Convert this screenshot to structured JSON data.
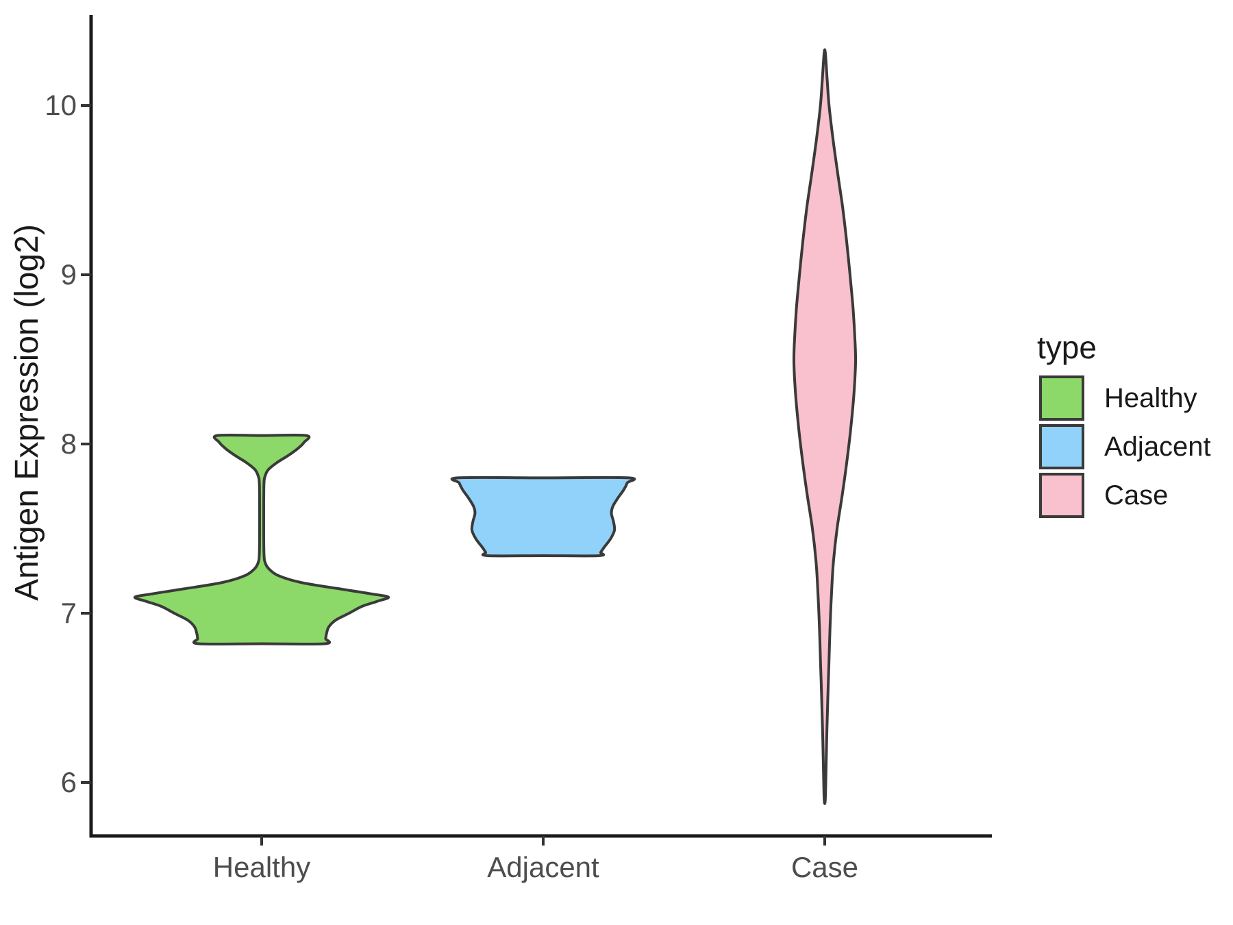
{
  "figure": {
    "background": "#FFFFFF"
  },
  "chart_data": {
    "type": "violin",
    "title": "",
    "xlabel": "",
    "ylabel": "Antigen Expression (log2)",
    "categories": [
      "Healthy",
      "Adjacent",
      "Case"
    ],
    "y_ticks": [
      "6",
      "7",
      "8",
      "9",
      "10"
    ],
    "y_tick_values": [
      6,
      7,
      8,
      9,
      10
    ],
    "ylim": [
      5.68,
      10.54
    ],
    "grid": false,
    "theme": "classic (left and bottom axis lines only)",
    "outline_color": "#3A3A3A",
    "axis_line_color": "#1A1A1A",
    "tick_mark_color": "#333333",
    "tick_text_color": "#4D4D4D",
    "legend": {
      "title": "type",
      "position": "right",
      "entries": [
        "Healthy",
        "Adjacent",
        "Case"
      ]
    },
    "series": [
      {
        "name": "Healthy",
        "fill": "#8CD868",
        "min": 6.82,
        "max": 8.05,
        "peak_density_at": 7.1,
        "shape_note": "bimodal: wide mass 6.8-7.3 with flat bottom, thin stem up to flared flat top at 8.05",
        "flat_top": true,
        "flat_bottom": true,
        "rel_width": 1.0,
        "profile": [
          [
            8.05,
            0.351
          ],
          [
            8.01,
            0.335
          ],
          [
            7.97,
            0.28
          ],
          [
            7.93,
            0.205
          ],
          [
            7.89,
            0.12
          ],
          [
            7.85,
            0.054
          ],
          [
            7.81,
            0.027
          ],
          [
            7.76,
            0.018
          ],
          [
            7.55,
            0.016
          ],
          [
            7.36,
            0.018
          ],
          [
            7.3,
            0.027
          ],
          [
            7.26,
            0.06
          ],
          [
            7.22,
            0.14
          ],
          [
            7.18,
            0.32
          ],
          [
            7.14,
            0.65
          ],
          [
            7.115,
            0.86
          ],
          [
            7.095,
            1.0
          ],
          [
            7.07,
            0.91
          ],
          [
            7.04,
            0.79
          ],
          [
            7.0,
            0.69
          ],
          [
            6.96,
            0.585
          ],
          [
            6.92,
            0.53
          ],
          [
            6.88,
            0.512
          ],
          [
            6.85,
            0.505
          ],
          [
            6.82,
            0.497
          ]
        ]
      },
      {
        "name": "Adjacent",
        "fill": "#91D2FA",
        "min": 7.34,
        "max": 7.8,
        "peak_density_at": 7.8,
        "shape_note": "compact block between 7.34 and 7.80, flat top and bottom, slight waist near 7.6",
        "flat_top": true,
        "flat_bottom": true,
        "rel_width": 0.673,
        "profile": [
          [
            7.8,
            1.0
          ],
          [
            7.77,
            0.985
          ],
          [
            7.73,
            0.945
          ],
          [
            7.68,
            0.875
          ],
          [
            7.63,
            0.815
          ],
          [
            7.59,
            0.8
          ],
          [
            7.54,
            0.825
          ],
          [
            7.49,
            0.835
          ],
          [
            7.44,
            0.79
          ],
          [
            7.39,
            0.715
          ],
          [
            7.36,
            0.675
          ],
          [
            7.34,
            0.655
          ]
        ]
      },
      {
        "name": "Case",
        "fill": "#F8C1CD",
        "min": 5.9,
        "max": 10.31,
        "peak_density_at": 8.48,
        "shape_note": "long slender spindle from 5.9 to 10.31, widest near 8.5",
        "flat_top": false,
        "flat_bottom": false,
        "rel_width": 0.243,
        "profile": [
          [
            10.31,
            0.02
          ],
          [
            10.15,
            0.08
          ],
          [
            10.0,
            0.14
          ],
          [
            9.8,
            0.27
          ],
          [
            9.6,
            0.42
          ],
          [
            9.4,
            0.58
          ],
          [
            9.2,
            0.71
          ],
          [
            9.0,
            0.82
          ],
          [
            8.8,
            0.92
          ],
          [
            8.6,
            0.985
          ],
          [
            8.48,
            1.0
          ],
          [
            8.3,
            0.95
          ],
          [
            8.1,
            0.85
          ],
          [
            7.9,
            0.72
          ],
          [
            7.7,
            0.57
          ],
          [
            7.5,
            0.4
          ],
          [
            7.3,
            0.28
          ],
          [
            7.1,
            0.215
          ],
          [
            6.9,
            0.17
          ],
          [
            6.7,
            0.135
          ],
          [
            6.5,
            0.1
          ],
          [
            6.3,
            0.07
          ],
          [
            6.1,
            0.045
          ],
          [
            5.9,
            0.01
          ]
        ]
      }
    ]
  }
}
